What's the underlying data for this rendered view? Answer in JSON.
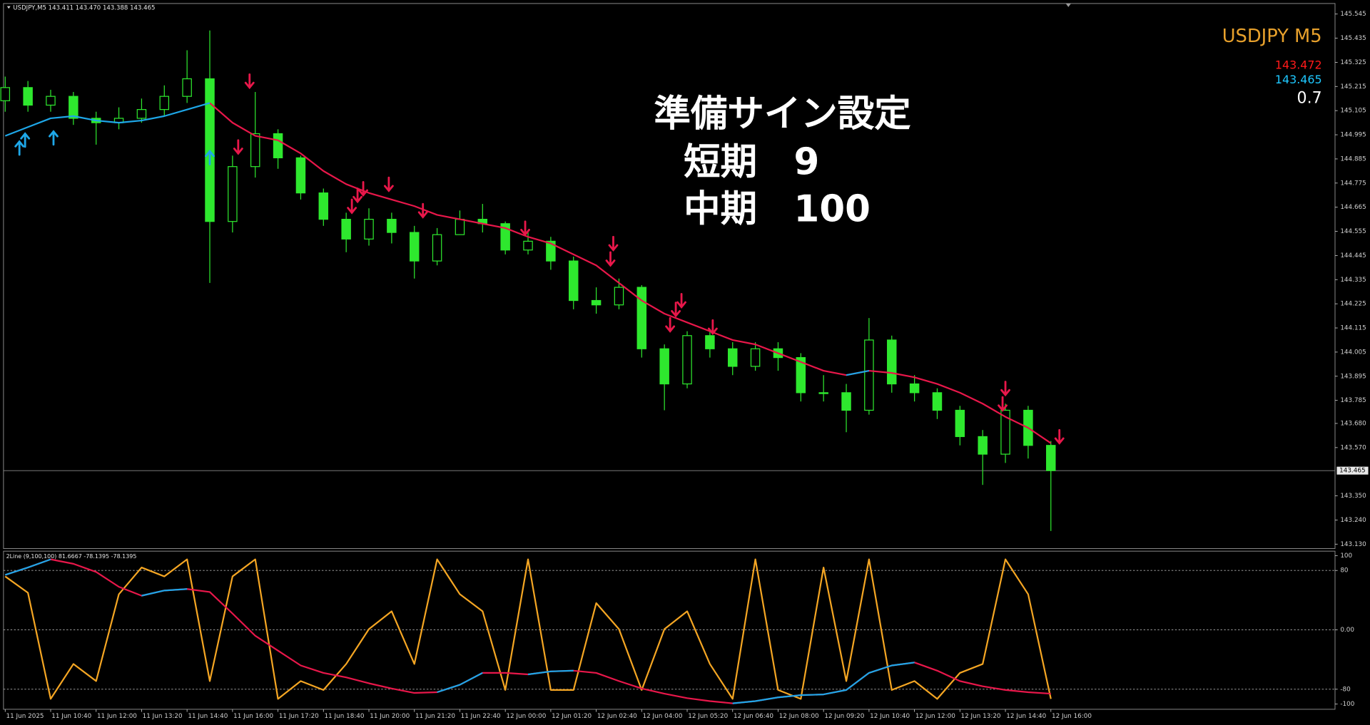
{
  "chart_data": [
    {
      "type": "candlestick",
      "header": "USDJPY,M5  143.411 143.470 143.388 143.465",
      "symbol": "USDJPY M5",
      "symbol_color": "#e8a12c",
      "info": [
        {
          "text": "143.472",
          "color": "#ff1a1a"
        },
        {
          "text": "143.465",
          "color": "#1ec8ff"
        },
        {
          "text": "0.7",
          "color": "#ffffff"
        }
      ],
      "annotations": [
        "準備サイン設定",
        "短期　9",
        "中期　100"
      ],
      "color": "#2ee82e",
      "x": [
        0,
        8,
        16,
        24,
        32,
        40,
        48,
        56,
        64,
        72,
        80,
        88,
        96,
        104,
        112,
        120,
        128,
        136,
        144,
        152,
        160,
        168,
        176,
        184,
        192,
        200,
        208,
        216,
        224,
        232,
        240,
        248,
        256,
        264,
        272,
        280,
        288,
        296,
        304,
        312,
        320,
        328,
        336,
        344,
        352,
        360,
        368
      ],
      "open": [
        145.15,
        145.21,
        145.13,
        145.17,
        145.07,
        145.05,
        145.07,
        145.11,
        145.17,
        145.25,
        144.6,
        144.85,
        145.0,
        144.89,
        144.73,
        144.61,
        144.52,
        144.61,
        144.55,
        144.42,
        144.54,
        144.61,
        144.59,
        144.47,
        144.51,
        144.42,
        144.24,
        144.22,
        144.3,
        144.02,
        143.86,
        144.08,
        144.02,
        143.94,
        144.02,
        143.98,
        143.82,
        143.82,
        143.74,
        144.06,
        143.86,
        143.82,
        143.74,
        143.62,
        143.54,
        143.74,
        143.58
      ],
      "high": [
        145.26,
        145.24,
        145.2,
        145.19,
        145.1,
        145.12,
        145.16,
        145.22,
        145.38,
        145.47,
        144.9,
        145.19,
        145.02,
        144.9,
        144.75,
        144.64,
        144.66,
        144.64,
        144.58,
        144.57,
        144.65,
        144.68,
        144.6,
        144.55,
        144.53,
        144.44,
        144.3,
        144.34,
        144.31,
        144.04,
        144.1,
        144.1,
        144.05,
        144.05,
        144.05,
        144.0,
        143.9,
        143.86,
        144.16,
        144.08,
        143.9,
        143.84,
        143.76,
        143.65,
        143.77,
        143.76,
        143.6
      ],
      "low": [
        145.1,
        145.1,
        145.1,
        145.04,
        144.95,
        145.02,
        145.05,
        145.08,
        145.14,
        144.32,
        144.55,
        144.8,
        144.84,
        144.7,
        144.58,
        144.46,
        144.49,
        144.5,
        144.34,
        144.4,
        144.55,
        144.55,
        144.45,
        144.45,
        144.38,
        144.2,
        144.18,
        144.2,
        143.98,
        143.74,
        143.84,
        143.98,
        143.9,
        143.92,
        143.92,
        143.78,
        143.78,
        143.64,
        143.72,
        143.82,
        143.78,
        143.7,
        143.58,
        143.4,
        143.5,
        143.52,
        143.19
      ],
      "close": [
        145.21,
        145.13,
        145.17,
        145.07,
        145.05,
        145.07,
        145.11,
        145.17,
        145.25,
        144.6,
        144.85,
        145.0,
        144.89,
        144.73,
        144.61,
        144.52,
        144.61,
        144.55,
        144.42,
        144.54,
        144.61,
        144.59,
        144.47,
        144.51,
        144.42,
        144.24,
        144.22,
        144.3,
        144.02,
        143.86,
        144.08,
        144.02,
        143.94,
        144.02,
        143.98,
        143.82,
        143.82,
        143.74,
        144.06,
        143.86,
        143.82,
        143.74,
        143.62,
        143.54,
        143.74,
        143.58,
        143.465
      ],
      "series": [
        {
          "color": "#e8174a",
          "values": [
            null,
            null,
            null,
            null,
            null,
            null,
            null,
            null,
            null,
            145.14,
            145.05,
            144.99,
            144.97,
            144.91,
            144.83,
            144.77,
            144.73,
            144.7,
            144.67,
            144.63,
            144.61,
            144.59,
            144.57,
            144.53,
            144.5,
            144.45,
            144.4,
            144.32,
            144.24,
            144.18,
            144.14,
            144.1,
            144.06,
            144.04,
            144.0,
            143.96,
            143.92,
            143.9,
            143.92,
            143.91,
            143.89,
            143.86,
            143.82,
            143.77,
            143.71,
            143.66,
            143.59
          ]
        },
        {
          "color": "#1ea7e8",
          "values": [
            144.99,
            145.03,
            145.07,
            145.08,
            145.06,
            145.05,
            145.06,
            145.08,
            145.11,
            145.14,
            null,
            null,
            null,
            null,
            null,
            null,
            null,
            null,
            null,
            null,
            null,
            null,
            null,
            null,
            null,
            null,
            null,
            null,
            null,
            null,
            null,
            null,
            null,
            null,
            null,
            null,
            null,
            143.9,
            143.92,
            null,
            null,
            null,
            null,
            null,
            null,
            null,
            null
          ]
        }
      ],
      "arrows_up": {
        "color": "#1ea7e8",
        "x": [
          5,
          7,
          17,
          72
        ],
        "values": [
          144.964,
          145.0,
          145.01,
          144.92
        ]
      },
      "arrows_down": {
        "color": "#e8174a",
        "x": [
          86,
          82,
          122,
          124,
          126,
          135,
          147,
          183,
          214,
          213,
          234,
          236,
          238,
          249,
          352,
          351,
          371
        ],
        "values": [
          145.21,
          144.91,
          144.64,
          144.69,
          144.72,
          144.74,
          144.62,
          144.54,
          144.47,
          144.4,
          144.1,
          144.17,
          144.21,
          144.09,
          143.81,
          143.74,
          143.59
        ]
      },
      "last": {
        "value": 143.465,
        "label": "143.465"
      },
      "xlim": [
        -0.6,
        468
      ],
      "ylim": [
        143.11,
        145.593
      ],
      "yticks": [
        145.545,
        145.435,
        145.325,
        145.215,
        145.105,
        144.995,
        144.885,
        144.775,
        144.665,
        144.555,
        144.445,
        144.335,
        144.225,
        144.115,
        144.005,
        143.895,
        143.785,
        {
          "value": 143.68,
          "label": "143.680"
        },
        {
          "value": 143.57,
          "label": "143.570"
        },
        {
          "value": 143.35,
          "label": "143.350"
        },
        {
          "value": 143.24,
          "label": "143.240"
        },
        {
          "value": 143.13,
          "label": "143.130"
        }
      ]
    },
    {
      "type": "line",
      "header": "2Line (9,100,100) 81.6667 -78.1395 -78.1395",
      "x": [
        0,
        8,
        16,
        24,
        32,
        40,
        48,
        56,
        64,
        72,
        80,
        88,
        96,
        104,
        112,
        120,
        128,
        136,
        144,
        152,
        160,
        168,
        176,
        184,
        192,
        200,
        208,
        216,
        224,
        232,
        240,
        248,
        256,
        264,
        272,
        280,
        288,
        296,
        304,
        312,
        320,
        328,
        336,
        344,
        352,
        360,
        368
      ],
      "series": [
        {
          "color": "#f5a623",
          "values": [
            72,
            50,
            -93,
            -46,
            -69,
            48,
            84,
            72,
            95,
            -69,
            72,
            95,
            -93,
            -69,
            -81,
            -46,
            1,
            25,
            -46,
            95,
            48,
            25,
            -81,
            95,
            -81,
            -81,
            36,
            1,
            -81,
            1,
            25,
            -46,
            -93,
            95,
            -81,
            -93,
            84,
            -69,
            95,
            -81,
            -69,
            -93,
            -58,
            -46,
            95,
            48,
            -93
          ]
        },
        {
          "color": "#e8174a",
          "values": [
            74,
            84,
            95,
            89,
            78,
            58,
            46,
            53,
            55,
            51,
            22,
            -8,
            -28,
            -48,
            -58,
            -64,
            -72,
            -79,
            -85,
            -84,
            -74,
            -58,
            -58,
            -60,
            -56,
            -55,
            -58,
            -69,
            -79,
            -86,
            -92,
            -96,
            -99,
            -96,
            -91,
            -88,
            -87,
            -81,
            -58,
            -48,
            -44,
            -55,
            -69,
            -76,
            -81,
            -84,
            -86
          ]
        },
        {
          "color": "#1ea7e8",
          "values": [
            74,
            84,
            95,
            null,
            null,
            null,
            46,
            53,
            55,
            null,
            null,
            null,
            null,
            null,
            null,
            null,
            null,
            null,
            null,
            -84,
            -74,
            -58,
            null,
            -60,
            -56,
            -55,
            null,
            null,
            null,
            null,
            null,
            null,
            -99,
            -96,
            -91,
            -88,
            -87,
            -81,
            -58,
            -48,
            -44,
            null,
            null,
            null,
            null,
            null,
            null
          ]
        }
      ],
      "levels": [
        80,
        0,
        -80
      ],
      "xlim": [
        -0.6,
        468
      ],
      "ylim": [
        -107,
        106
      ],
      "yticks": [
        100,
        80,
        {
          "value": 0,
          "label": "0.00"
        },
        -80,
        -100
      ],
      "xticks": [
        {
          "value": 0,
          "label": "11 Jun 2025"
        },
        {
          "value": 16,
          "label": "11 Jun 10:40"
        },
        {
          "value": 32,
          "label": "11 Jun 12:00"
        },
        {
          "value": 48,
          "label": "11 Jun 13:20"
        },
        {
          "value": 64,
          "label": "11 Jun 14:40"
        },
        {
          "value": 80,
          "label": "11 Jun 16:00"
        },
        {
          "value": 96,
          "label": "11 Jun 17:20"
        },
        {
          "value": 112,
          "label": "11 Jun 18:40"
        },
        {
          "value": 128,
          "label": "11 Jun 20:00"
        },
        {
          "value": 144,
          "label": "11 Jun 21:20"
        },
        {
          "value": 160,
          "label": "11 Jun 22:40"
        },
        {
          "value": 176,
          "label": "12 Jun 00:00"
        },
        {
          "value": 192,
          "label": "12 Jun 01:20"
        },
        {
          "value": 208,
          "label": "12 Jun 02:40"
        },
        {
          "value": 224,
          "label": "12 Jun 04:00"
        },
        {
          "value": 240,
          "label": "12 Jun 05:20"
        },
        {
          "value": 256,
          "label": "12 Jun 06:40"
        },
        {
          "value": 272,
          "label": "12 Jun 08:00"
        },
        {
          "value": 288,
          "label": "12 Jun 09:20"
        },
        {
          "value": 304,
          "label": "12 Jun 10:40"
        },
        {
          "value": 320,
          "label": "12 Jun 12:00"
        },
        {
          "value": 336,
          "label": "12 Jun 13:20"
        },
        {
          "value": 352,
          "label": "12 Jun 14:40"
        },
        {
          "value": 368,
          "label": "12 Jun 16:00"
        }
      ]
    }
  ]
}
